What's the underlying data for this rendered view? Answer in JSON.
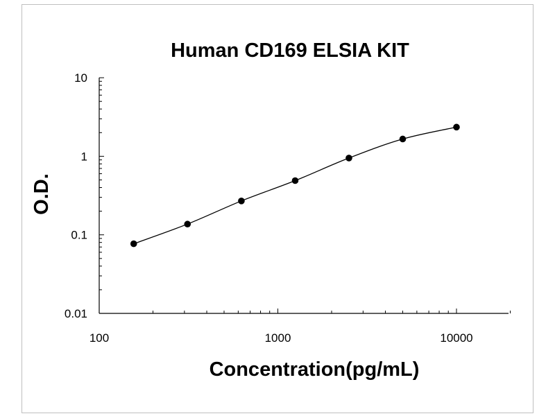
{
  "chart_data": {
    "type": "scatter",
    "title": "Human CD169 ELSIA KIT",
    "xlabel": "Concentration(pg/mL)",
    "ylabel": "O.D.",
    "x_scale": "log",
    "y_scale": "log",
    "xlim": [
      100,
      20000
    ],
    "ylim": [
      0.01,
      10
    ],
    "x_ticks": [
      100,
      1000,
      10000
    ],
    "x_tick_labels": [
      "100",
      "1000",
      "10000"
    ],
    "y_ticks": [
      0.01,
      0.1,
      1,
      10
    ],
    "y_tick_labels": [
      "0.01",
      "0.1",
      "1",
      "10"
    ],
    "grid": false,
    "legend": "none",
    "fit_curve": true,
    "x": [
      156,
      312,
      625,
      1250,
      2500,
      5000,
      10000
    ],
    "y": [
      0.077,
      0.137,
      0.27,
      0.49,
      0.95,
      1.66,
      2.35
    ]
  },
  "colors": {
    "marker": "#000000",
    "line": "#000000",
    "frame": "#bfbfbf"
  }
}
